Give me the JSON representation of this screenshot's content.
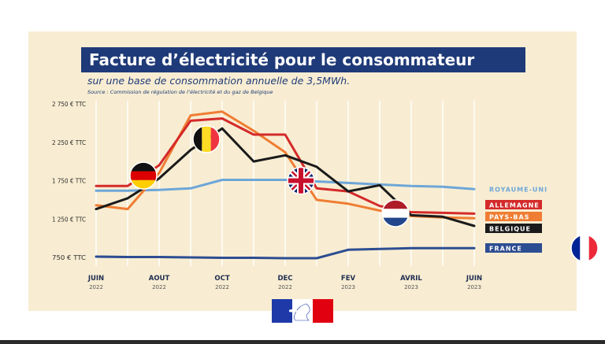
{
  "title": "Facture d’électricité pour le consommateur",
  "subtitle": "sur une base de consommation annuelle de 3,5MWh.",
  "source": "Source : Commission de régulation de l’électricité et du gaz de Belgique",
  "colors": {
    "panel": "#f8edd2",
    "title_bg": "#1f3a78",
    "Royaume-Uni": "#6ea6d8",
    "Allemagne": "#d42a2a",
    "Pays-Bas": "#ef7d33",
    "Belgique": "#1a1a1a",
    "France": "#2d4d92"
  },
  "flags": [
    {
      "name": "flag-germany-icon",
      "series": "Allemagne",
      "x": 1.5
    },
    {
      "name": "flag-belgium-icon",
      "series": "Belgique",
      "x": 3.5
    },
    {
      "name": "flag-uk-icon",
      "series": "Royaume-Uni",
      "x": 6.5
    },
    {
      "name": "flag-netherlands-icon",
      "series": "Pays-Bas",
      "x": 9.5
    },
    {
      "name": "flag-france-icon",
      "series": "France",
      "x": 15.5
    }
  ],
  "chart_data": {
    "type": "line",
    "title": "Facture d’électricité pour le consommateur",
    "x_ticks": [
      {
        "month": "JUIN",
        "year": "2022",
        "x": 0
      },
      {
        "month": "AOUT",
        "year": "2022",
        "x": 2
      },
      {
        "month": "OCT",
        "year": "2022",
        "x": 4
      },
      {
        "month": "DEC",
        "year": "2022",
        "x": 6
      },
      {
        "month": "FEV",
        "year": "2023",
        "x": 8
      },
      {
        "month": "AVRIL",
        "year": "2023",
        "x": 10
      },
      {
        "month": "JUIN",
        "year": "2023",
        "x": 12
      }
    ],
    "y_ticks": [
      {
        "value": 750,
        "label": "750 € TTC"
      },
      {
        "value": 1250,
        "label": "1 250 € TTC"
      },
      {
        "value": 1750,
        "label": "1 750 € TTC"
      },
      {
        "value": 2250,
        "label": "2 250 € TTC"
      },
      {
        "value": 2750,
        "label": "2 750 € TTC"
      }
    ],
    "ylim": [
      600,
      2800
    ],
    "xlim": [
      0,
      12
    ],
    "series": [
      {
        "name": "ROYAUME-UNI",
        "key": "Royaume-Uni",
        "points": [
          [
            0,
            1620
          ],
          [
            1,
            1620
          ],
          [
            2,
            1630
          ],
          [
            3,
            1650
          ],
          [
            4,
            1760
          ],
          [
            5,
            1760
          ],
          [
            6,
            1760
          ],
          [
            7,
            1740
          ],
          [
            8,
            1720
          ],
          [
            9,
            1700
          ],
          [
            10,
            1680
          ],
          [
            11,
            1670
          ],
          [
            12,
            1640
          ]
        ]
      },
      {
        "name": "ALLEMAGNE",
        "key": "Allemagne",
        "points": [
          [
            0,
            1680
          ],
          [
            1,
            1680
          ],
          [
            2,
            1950
          ],
          [
            3,
            2530
          ],
          [
            4,
            2560
          ],
          [
            5,
            2350
          ],
          [
            6,
            2350
          ],
          [
            7,
            1650
          ],
          [
            8,
            1610
          ],
          [
            9,
            1420
          ],
          [
            10,
            1340
          ],
          [
            11,
            1330
          ],
          [
            12,
            1320
          ]
        ]
      },
      {
        "name": "PAYS-BAS",
        "key": "Pays-Bas",
        "points": [
          [
            0,
            1430
          ],
          [
            1,
            1380
          ],
          [
            2,
            1850
          ],
          [
            3,
            2600
          ],
          [
            4,
            2650
          ],
          [
            5,
            2400
          ],
          [
            6,
            2120
          ],
          [
            7,
            1500
          ],
          [
            8,
            1450
          ],
          [
            9,
            1360
          ],
          [
            10,
            1290
          ],
          [
            11,
            1270
          ],
          [
            12,
            1260
          ]
        ]
      },
      {
        "name": "BELGIQUE",
        "key": "Belgique",
        "points": [
          [
            0,
            1380
          ],
          [
            1,
            1520
          ],
          [
            2,
            1780
          ],
          [
            3,
            2150
          ],
          [
            4,
            2430
          ],
          [
            5,
            2000
          ],
          [
            6,
            2080
          ],
          [
            7,
            1930
          ],
          [
            8,
            1610
          ],
          [
            9,
            1690
          ],
          [
            10,
            1300
          ],
          [
            11,
            1280
          ],
          [
            12,
            1160
          ]
        ]
      },
      {
        "name": "FRANCE",
        "key": "France",
        "points": [
          [
            0,
            760
          ],
          [
            1,
            755
          ],
          [
            2,
            755
          ],
          [
            3,
            750
          ],
          [
            4,
            745
          ],
          [
            5,
            745
          ],
          [
            6,
            740
          ],
          [
            7,
            740
          ],
          [
            8,
            850
          ],
          [
            9,
            860
          ],
          [
            10,
            870
          ],
          [
            11,
            870
          ],
          [
            12,
            870
          ]
        ]
      }
    ],
    "legend": [
      {
        "label": "ROYAUME-UNI",
        "key": "Royaume-Uni"
      },
      {
        "label": "ALLEMAGNE",
        "key": "Allemagne"
      },
      {
        "label": "PAYS-BAS",
        "key": "Pays-Bas"
      },
      {
        "label": "BELGIQUE",
        "key": "Belgique"
      },
      {
        "label": "FRANCE",
        "key": "France"
      }
    ],
    "legend_position": "right",
    "grid": "vertical"
  }
}
